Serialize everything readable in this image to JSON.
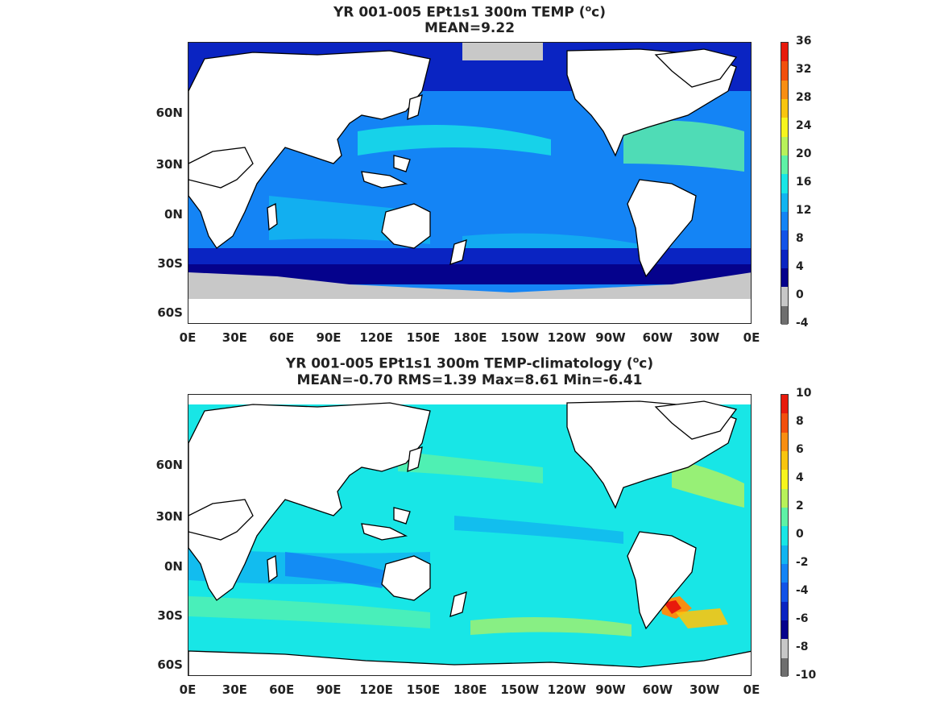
{
  "panels": [
    {
      "title_line1_prefix": "YR 001-005 EPt1s1 300m TEMP (",
      "unit_sup": "o",
      "unit_after": "c)",
      "title_line2": "MEAN=9.22",
      "colorbar_labels": [
        "36",
        "32",
        "28",
        "24",
        "20",
        "16",
        "12",
        "8",
        "4",
        "0",
        "-4"
      ],
      "colorbar_colors": [
        "#e81a0c",
        "#f24f0d",
        "#f88e12",
        "#f9c50f",
        "#f7f51d",
        "#b8f25a",
        "#5ef2a6",
        "#18e6e6",
        "#12b4f0",
        "#1484f5",
        "#1253e8",
        "#0a24c2",
        "#05028c",
        "#c7c7c7",
        "#6f6f6f"
      ]
    },
    {
      "title_line1_prefix": "YR 001-005 EPt1s1 300m TEMP-climatology (",
      "unit_sup": "o",
      "unit_after": "c)",
      "title_line2": "MEAN=-0.70   RMS=1.39   Max=8.61   Min=-6.41",
      "colorbar_labels": [
        "10",
        "8",
        "6",
        "4",
        "2",
        "0",
        "-2",
        "-4",
        "-6",
        "-8",
        "-10"
      ],
      "colorbar_colors": [
        "#e81a0c",
        "#f24f0d",
        "#f88e12",
        "#f9c50f",
        "#f7f51d",
        "#b8f25a",
        "#5ef2a6",
        "#18e6e6",
        "#12b4f0",
        "#1484f5",
        "#1253e8",
        "#0a24c2",
        "#05028c",
        "#c7c7c7",
        "#6f6f6f"
      ]
    }
  ],
  "axes": {
    "x_ticks": [
      "0E",
      "30E",
      "60E",
      "90E",
      "120E",
      "150E",
      "180E",
      "150W",
      "120W",
      "90W",
      "60W",
      "30W",
      "0E"
    ],
    "y_ticks": [
      "60N",
      "30N",
      "0N",
      "30S",
      "60S"
    ]
  },
  "colors": {
    "land": "#ffffff",
    "sea_ice_mask": "#c8c8c8",
    "coast": "#000000"
  }
}
